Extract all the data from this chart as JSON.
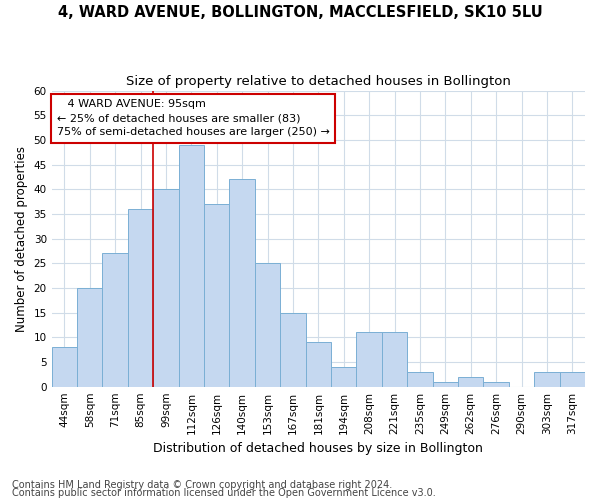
{
  "title": "4, WARD AVENUE, BOLLINGTON, MACCLESFIELD, SK10 5LU",
  "subtitle": "Size of property relative to detached houses in Bollington",
  "xlabel": "Distribution of detached houses by size in Bollington",
  "ylabel": "Number of detached properties",
  "categories": [
    "44sqm",
    "58sqm",
    "71sqm",
    "85sqm",
    "99sqm",
    "112sqm",
    "126sqm",
    "140sqm",
    "153sqm",
    "167sqm",
    "181sqm",
    "194sqm",
    "208sqm",
    "221sqm",
    "235sqm",
    "249sqm",
    "262sqm",
    "276sqm",
    "290sqm",
    "303sqm",
    "317sqm"
  ],
  "values": [
    8,
    20,
    27,
    36,
    40,
    49,
    37,
    42,
    25,
    15,
    9,
    4,
    11,
    11,
    3,
    1,
    2,
    1,
    0,
    3,
    3
  ],
  "bar_color": "#c5d8f0",
  "bar_edge_color": "#7aafd4",
  "background_color": "#ffffff",
  "fig_background_color": "#ffffff",
  "grid_color": "#d0dce8",
  "ylim": [
    0,
    60
  ],
  "yticks": [
    0,
    5,
    10,
    15,
    20,
    25,
    30,
    35,
    40,
    45,
    50,
    55,
    60
  ],
  "red_line_x": 4.0,
  "annotation_text": "   4 WARD AVENUE: 95sqm\n← 25% of detached houses are smaller (83)\n75% of semi-detached houses are larger (250) →",
  "annotation_box_color": "#ffffff",
  "annotation_edge_color": "#cc0000",
  "footer1": "Contains HM Land Registry data © Crown copyright and database right 2024.",
  "footer2": "Contains public sector information licensed under the Open Government Licence v3.0.",
  "title_fontsize": 10.5,
  "subtitle_fontsize": 9.5,
  "xlabel_fontsize": 9,
  "ylabel_fontsize": 8.5,
  "tick_fontsize": 7.5,
  "annotation_fontsize": 8,
  "footer_fontsize": 7
}
